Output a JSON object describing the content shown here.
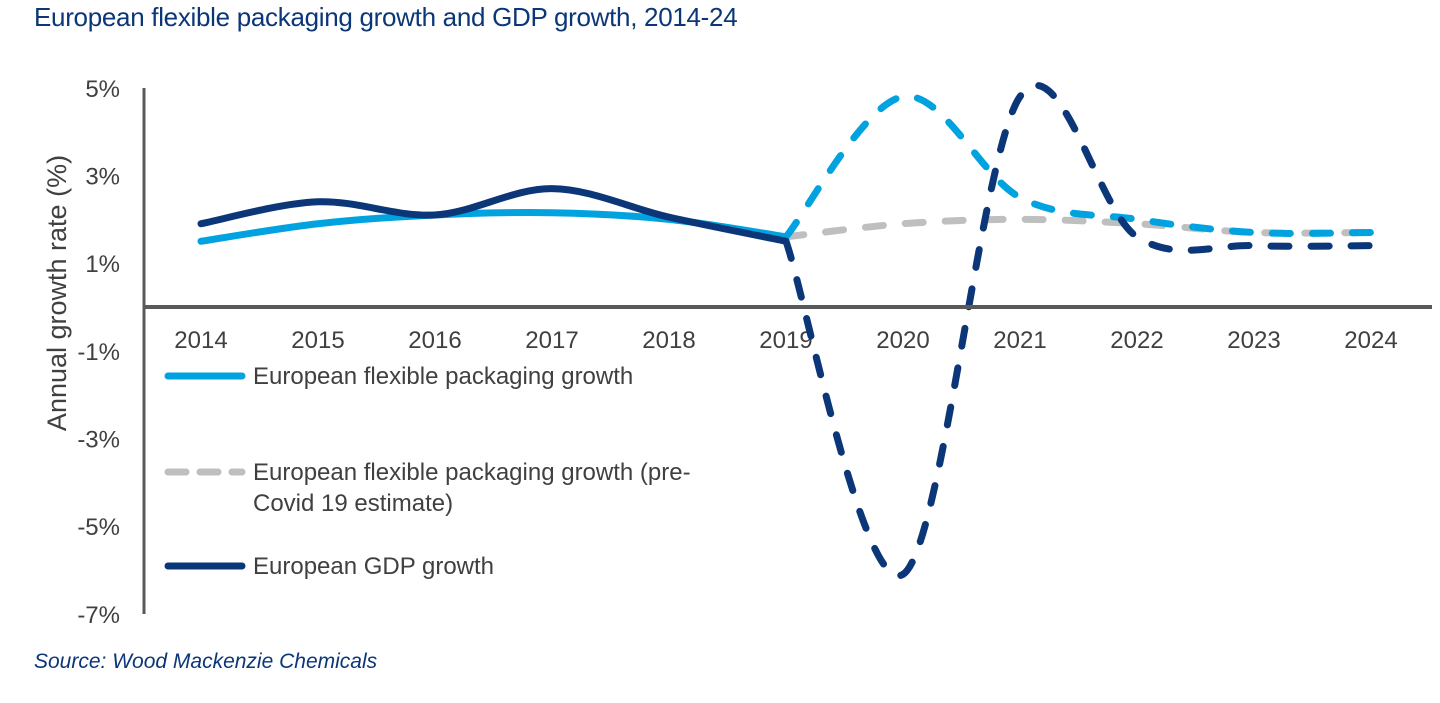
{
  "title": "European flexible packaging growth and GDP growth, 2014-24",
  "source": "Source: Wood Mackenzie Chemicals",
  "colors": {
    "flex": "#00a3e0",
    "precovid": "#bfbfbf",
    "gdp": "#0b3678",
    "axis": "#595959"
  },
  "chart_data": {
    "type": "line",
    "title": "European flexible packaging growth and GDP growth, 2014-24",
    "xlabel": "",
    "ylabel": "Annual growth rate (%)",
    "ylim": [
      -7,
      5
    ],
    "y_ticks": [
      "5%",
      "3%",
      "1%",
      "-1%",
      "-3%",
      "-5%",
      "-7%"
    ],
    "y_tick_values": [
      5,
      3,
      1,
      -1,
      -3,
      -5,
      -7
    ],
    "x": [
      "2014",
      "2015",
      "2016",
      "2017",
      "2018",
      "2019",
      "2020",
      "2021",
      "2022",
      "2023",
      "2024"
    ],
    "grid": false,
    "legend_position": "left",
    "forecast_from": "2019",
    "series": [
      {
        "name": "European flexible packaging growth",
        "style": "solid then dashed after 2019",
        "color": "#00a3e0",
        "values": [
          1.5,
          1.9,
          2.1,
          2.15,
          2.0,
          1.6,
          4.8,
          2.5,
          2.0,
          1.7,
          1.7
        ]
      },
      {
        "name": "European flexible packaging growth (pre-Covid 19 estimate)",
        "style": "dashed",
        "color": "#bfbfbf",
        "values": [
          null,
          null,
          null,
          null,
          null,
          1.6,
          1.9,
          2.0,
          1.9,
          1.7,
          1.7
        ]
      },
      {
        "name": "European GDP growth",
        "style": "solid then dashed after 2019",
        "color": "#0b3678",
        "values": [
          1.9,
          2.4,
          2.1,
          2.7,
          2.05,
          1.5,
          -6.1,
          4.8,
          1.6,
          1.4,
          1.4
        ]
      }
    ],
    "legend": [
      {
        "line1": "European flexible packaging growth",
        "line2": ""
      },
      {
        "line1": "European flexible packaging growth (pre-",
        "line2": "Covid 19 estimate)"
      },
      {
        "line1": "European GDP growth",
        "line2": ""
      }
    ]
  }
}
